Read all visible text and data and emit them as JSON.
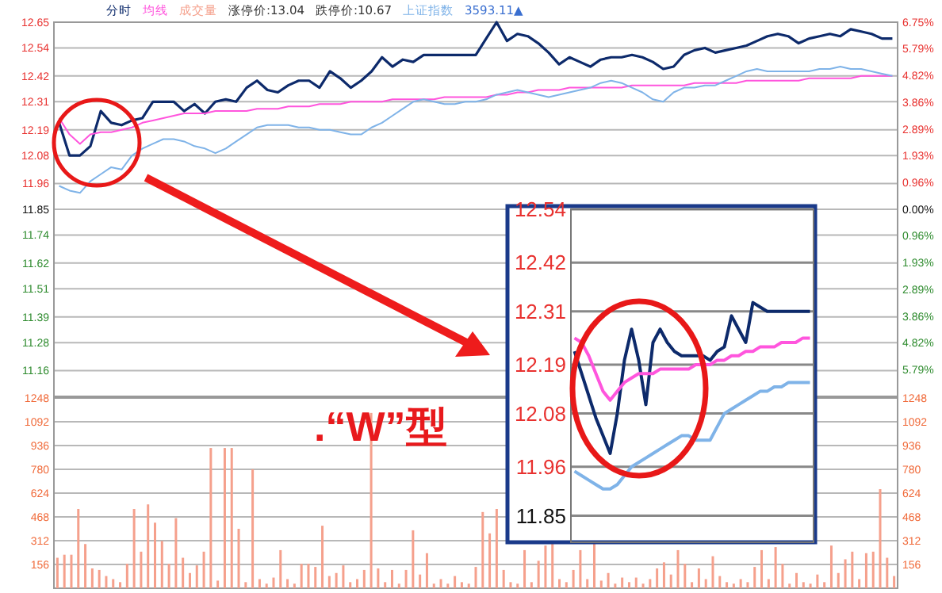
{
  "chart_data": [
    {
      "type": "line",
      "categories": [
        null,
        null,
        null,
        null,
        null,
        null,
        null,
        null,
        null,
        null,
        null,
        null,
        null,
        null,
        null,
        null,
        null,
        null,
        null,
        null,
        null,
        null,
        null,
        null,
        null,
        null,
        null,
        null,
        null,
        null,
        null,
        null,
        null,
        null,
        null,
        null,
        null,
        null,
        null,
        null,
        null,
        null,
        null,
        null,
        null,
        null,
        null,
        null,
        null,
        null,
        null,
        null,
        null,
        null,
        null,
        null,
        null,
        null,
        null,
        null,
        null,
        null,
        null,
        null,
        null,
        null,
        null,
        null,
        null,
        null,
        null,
        null,
        null,
        null,
        null,
        null,
        null,
        null,
        null,
        null,
        null
      ],
      "ylim": [
        11.05,
        12.65
      ],
      "yticks": [
        11.16,
        11.28,
        11.39,
        11.51,
        11.62,
        11.74,
        11.85,
        11.96,
        12.08,
        12.19,
        12.31,
        12.42,
        12.54,
        12.65
      ],
      "y2lim": [
        -6.75,
        6.75
      ],
      "y2ticks": [
        {
          "value": -5.79,
          "label": "5.79%"
        },
        {
          "value": -4.82,
          "label": "4.82%"
        },
        {
          "value": -3.86,
          "label": "3.86%"
        },
        {
          "value": -2.89,
          "label": "2.89%"
        },
        {
          "value": -1.93,
          "label": "1.93%"
        },
        {
          "value": -0.96,
          "label": "0.96%"
        },
        {
          "value": 0,
          "label": "0.00%"
        },
        {
          "value": 0.96,
          "label": "0.96%"
        },
        {
          "value": 1.93,
          "label": "1.93%"
        },
        {
          "value": 2.89,
          "label": "2.89%"
        },
        {
          "value": 3.86,
          "label": "3.86%"
        },
        {
          "value": 4.82,
          "label": "4.82%"
        },
        {
          "value": 5.79,
          "label": "5.79%"
        },
        {
          "value": 6.75,
          "label": "6.75%"
        }
      ],
      "grid": "y",
      "line_style": "solid",
      "marker": "none",
      "annotations": [
        "涨停价:13.04",
        "跌停价:10.67",
        "3593.11▲",
        ".“W”型"
      ],
      "series": [
        {
          "name": "分时",
          "color": "#0d2a6b",
          "values": [
            12.22,
            12.08,
            12.08,
            12.12,
            12.27,
            12.22,
            12.21,
            12.23,
            12.24,
            12.31,
            12.31,
            12.31,
            12.27,
            12.3,
            12.26,
            12.31,
            12.32,
            12.31,
            12.37,
            12.4,
            12.36,
            12.35,
            12.38,
            12.4,
            12.4,
            12.37,
            12.44,
            12.41,
            12.37,
            12.4,
            12.44,
            12.5,
            12.46,
            12.49,
            12.48,
            12.51,
            12.51,
            12.51,
            12.51,
            12.51,
            12.51,
            12.58,
            12.65,
            12.57,
            12.6,
            12.59,
            12.56,
            12.52,
            12.47,
            12.5,
            12.48,
            12.46,
            12.49,
            12.5,
            12.5,
            12.51,
            12.5,
            12.48,
            12.45,
            12.46,
            12.51,
            12.53,
            12.54,
            12.52,
            12.53,
            12.54,
            12.55,
            12.57,
            12.59,
            12.6,
            12.59,
            12.56,
            12.58,
            12.59,
            12.6,
            12.59,
            12.62,
            12.61,
            12.6,
            12.58,
            12.58
          ]
        },
        {
          "name": "均线",
          "color": "#ff55dd",
          "values": [
            12.24,
            12.17,
            12.13,
            12.17,
            12.18,
            12.18,
            12.19,
            12.2,
            12.22,
            12.23,
            12.24,
            12.25,
            12.26,
            12.26,
            12.26,
            12.27,
            12.27,
            12.27,
            12.27,
            12.28,
            12.28,
            12.28,
            12.29,
            12.29,
            12.29,
            12.3,
            12.3,
            12.3,
            12.31,
            12.31,
            12.31,
            12.31,
            12.32,
            12.32,
            12.32,
            12.32,
            12.32,
            12.33,
            12.33,
            12.33,
            12.33,
            12.33,
            12.34,
            12.34,
            12.35,
            12.35,
            12.36,
            12.36,
            12.36,
            12.37,
            12.37,
            12.37,
            12.37,
            12.37,
            12.37,
            12.38,
            12.38,
            12.38,
            12.38,
            12.38,
            12.38,
            12.39,
            12.39,
            12.39,
            12.39,
            12.39,
            12.4,
            12.4,
            12.4,
            12.4,
            12.4,
            12.4,
            12.41,
            12.41,
            12.41,
            12.41,
            12.41,
            12.42,
            12.42,
            12.42,
            12.42
          ]
        },
        {
          "name": "上证指数",
          "color": "#7fb3e8",
          "values": [
            11.95,
            11.93,
            11.92,
            11.97,
            12.0,
            12.03,
            12.02,
            12.08,
            12.11,
            12.13,
            12.15,
            12.15,
            12.14,
            12.12,
            12.11,
            12.09,
            12.11,
            12.14,
            12.17,
            12.2,
            12.21,
            12.21,
            12.21,
            12.2,
            12.2,
            12.19,
            12.19,
            12.18,
            12.17,
            12.17,
            12.2,
            12.22,
            12.25,
            12.28,
            12.31,
            12.32,
            12.31,
            12.3,
            12.3,
            12.31,
            12.31,
            12.32,
            12.34,
            12.35,
            12.36,
            12.35,
            12.34,
            12.33,
            12.34,
            12.35,
            12.36,
            12.37,
            12.39,
            12.4,
            12.39,
            12.37,
            12.35,
            12.32,
            12.31,
            12.35,
            12.37,
            12.37,
            12.38,
            12.38,
            12.4,
            12.42,
            12.44,
            12.45,
            12.44,
            12.44,
            12.44,
            12.44,
            12.44,
            12.45,
            12.45,
            12.46,
            12.45,
            12.45,
            12.44,
            12.43,
            12.42
          ]
        }
      ]
    },
    {
      "type": "bar",
      "categories": [
        null,
        null,
        null,
        null,
        null,
        null,
        null,
        null,
        null,
        null,
        null,
        null,
        null,
        null,
        null,
        null,
        null,
        null,
        null,
        null,
        null,
        null,
        null,
        null,
        null,
        null,
        null,
        null,
        null,
        null,
        null,
        null,
        null,
        null,
        null,
        null,
        null,
        null,
        null,
        null,
        null,
        null,
        null,
        null,
        null,
        null,
        null,
        null,
        null,
        null,
        null,
        null,
        null,
        null,
        null,
        null,
        null,
        null,
        null,
        null,
        null,
        null,
        null,
        null,
        null,
        null,
        null,
        null,
        null,
        null,
        null,
        null,
        null,
        null,
        null,
        null,
        null,
        null,
        null,
        null,
        null,
        null,
        null,
        null,
        null,
        null,
        null,
        null,
        null,
        null,
        null,
        null,
        null,
        null,
        null,
        null,
        null,
        null,
        null,
        null,
        null,
        null,
        null,
        null,
        null,
        null,
        null,
        null,
        null,
        null,
        null,
        null,
        null,
        null,
        null,
        null,
        null,
        null,
        null,
        null,
        null
      ],
      "ylim": [
        0,
        1248
      ],
      "yticks": [
        156,
        312,
        468,
        624,
        780,
        936,
        1092,
        1248
      ],
      "y2lim": [
        0,
        1248
      ],
      "y2ticks": [
        156,
        312,
        468,
        624,
        780,
        936,
        1092,
        1248
      ],
      "grid": "y",
      "series": [
        {
          "name": "成交量",
          "color": "#f5a08c",
          "values": [
            200,
            220,
            220,
            520,
            290,
            130,
            120,
            80,
            60,
            40,
            160,
            520,
            240,
            550,
            430,
            310,
            160,
            460,
            200,
            100,
            150,
            240,
            920,
            50,
            920,
            920,
            390,
            40,
            780,
            60,
            30,
            70,
            250,
            60,
            30,
            160,
            160,
            140,
            410,
            80,
            100,
            150,
            40,
            60,
            120,
            1150,
            130,
            40,
            120,
            30,
            120,
            380,
            90,
            230,
            30,
            60,
            30,
            80,
            40,
            30,
            140,
            500,
            360,
            520,
            120,
            40,
            30,
            250,
            40,
            180,
            280,
            310,
            60,
            40,
            120,
            250,
            60,
            300,
            50,
            100,
            30,
            70,
            40,
            70,
            30,
            60,
            130,
            170,
            90,
            250,
            160,
            40,
            130,
            60,
            210,
            80,
            40,
            30,
            60,
            40,
            140,
            250,
            60,
            270,
            160,
            30,
            100,
            40,
            30,
            90,
            40,
            280,
            100,
            190,
            240,
            60,
            230,
            240,
            650,
            200,
            80
          ]
        }
      ]
    },
    {
      "type": "line",
      "categories": [
        null,
        null,
        null,
        null,
        null,
        null,
        null,
        null,
        null,
        null,
        null,
        null,
        null,
        null,
        null,
        null,
        null,
        null,
        null,
        null,
        null,
        null,
        null,
        null,
        null,
        null,
        null,
        null,
        null,
        null,
        null,
        null,
        null,
        null
      ],
      "ylim": [
        11.79,
        12.54
      ],
      "yticks": [
        11.85,
        11.96,
        12.08,
        12.19,
        12.31,
        12.42,
        12.54
      ],
      "grid": "y",
      "line_style": "solid",
      "marker": "none",
      "series": [
        {
          "color": "#0d2a6b",
          "values": [
            12.22,
            12.17,
            12.12,
            12.07,
            12.03,
            11.99,
            12.08,
            12.2,
            12.27,
            12.2,
            12.1,
            12.24,
            12.27,
            12.24,
            12.22,
            12.21,
            12.21,
            12.21,
            12.21,
            12.2,
            12.22,
            12.23,
            12.3,
            12.27,
            12.24,
            12.33,
            12.32,
            12.31,
            12.31,
            12.31,
            12.31,
            12.31,
            12.31,
            12.31
          ]
        },
        {
          "color": "#ff55dd",
          "values": [
            12.25,
            12.24,
            12.21,
            12.17,
            12.13,
            12.11,
            12.13,
            12.15,
            12.16,
            12.17,
            12.17,
            12.17,
            12.18,
            12.18,
            12.18,
            12.18,
            12.18,
            12.19,
            12.19,
            12.19,
            12.2,
            12.2,
            12.21,
            12.21,
            12.22,
            12.22,
            12.23,
            12.23,
            12.23,
            12.24,
            12.24,
            12.24,
            12.25,
            12.25
          ]
        },
        {
          "color": "#7fb3e8",
          "values": [
            11.95,
            11.94,
            11.93,
            11.92,
            11.91,
            11.91,
            11.92,
            11.94,
            11.96,
            11.97,
            11.98,
            11.99,
            12.0,
            12.01,
            12.02,
            12.03,
            12.03,
            12.02,
            12.02,
            12.02,
            12.05,
            12.08,
            12.09,
            12.1,
            12.11,
            12.12,
            12.13,
            12.13,
            12.14,
            12.14,
            12.15,
            12.15,
            12.15,
            12.15
          ]
        }
      ]
    }
  ]
}
